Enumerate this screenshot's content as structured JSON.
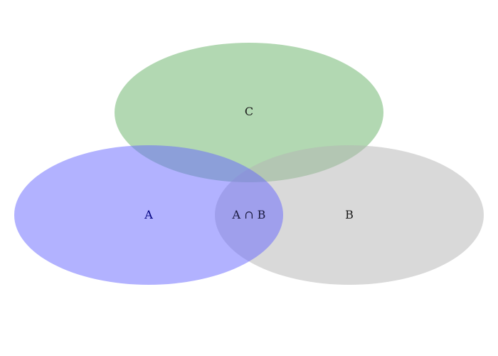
{
  "diagram": {
    "type": "venn",
    "sets": [
      {
        "id": "A",
        "label": "A",
        "color": "#6666ff",
        "text_color": "#000080"
      },
      {
        "id": "B",
        "label": "B",
        "color": "#b3b3b3",
        "text_color": "#1a1a1a"
      },
      {
        "id": "C",
        "label": "C",
        "color": "#66b266",
        "text_color": "#1a1a1a"
      }
    ],
    "intersections": [
      {
        "id": "A-B",
        "label": "A ∩ B",
        "text_color": "#1a1a40"
      }
    ],
    "background_color": "#ffffff"
  }
}
